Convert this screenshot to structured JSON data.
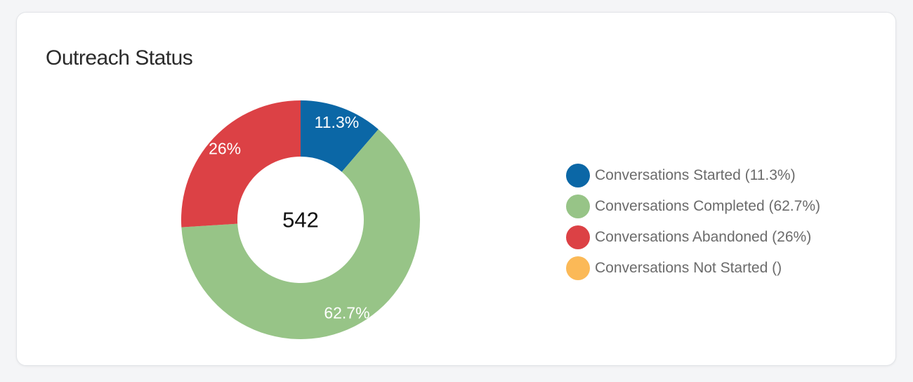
{
  "card": {
    "title": "Outreach Status"
  },
  "chart_data": {
    "type": "pie",
    "variant": "donut",
    "title": "Outreach Status",
    "center_label": "542",
    "slices": [
      {
        "name": "Conversations Started",
        "value": 11.3,
        "label": "11.3%",
        "color": "#0b67a6"
      },
      {
        "name": "Conversations Completed",
        "value": 62.7,
        "label": "62.7%",
        "color": "#97c487"
      },
      {
        "name": "Conversations Abandoned",
        "value": 26,
        "label": "26%",
        "color": "#dc4145"
      },
      {
        "name": "Conversations Not Started",
        "value": 0,
        "label": "",
        "color": "#fbb957"
      }
    ],
    "legend": {
      "placement": "right",
      "items": [
        "Conversations Started (11.3%)",
        "Conversations Completed (62.7%)",
        "Conversations Abandoned (26%)",
        "Conversations Not Started ()"
      ]
    }
  }
}
